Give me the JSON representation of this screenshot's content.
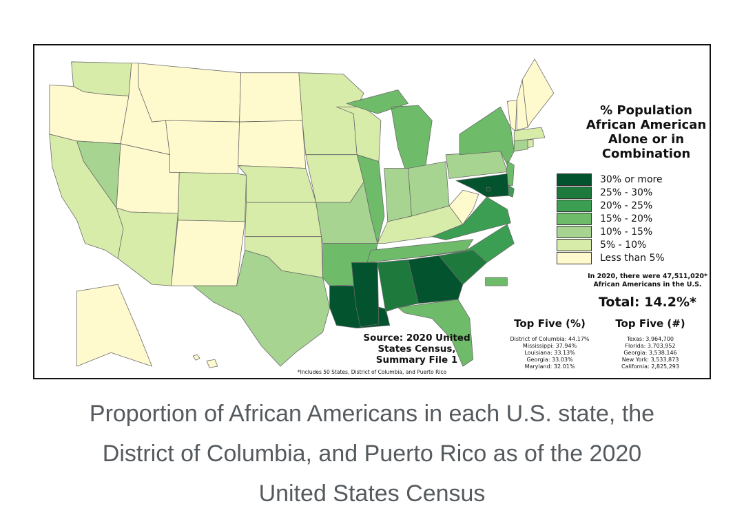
{
  "legend": {
    "title_lines": [
      "% Population",
      "African American",
      "Alone or in",
      "Combination"
    ],
    "classes": [
      {
        "label": "30% or more",
        "color": "#02532e"
      },
      {
        "label": "25% - 30%",
        "color": "#1d7a3c"
      },
      {
        "label": "20% - 25%",
        "color": "#3c9e52"
      },
      {
        "label": "15% - 20%",
        "color": "#6ebb6a"
      },
      {
        "label": "10% - 15%",
        "color": "#a7d491"
      },
      {
        "label": "5% - 10%",
        "color": "#d8ecaa"
      },
      {
        "label": "Less than 5%",
        "color": "#fffacd"
      }
    ]
  },
  "note_lines": [
    "In 2020, there were 47,511,020*",
    "African Americans in the U.S."
  ],
  "total": "Total: 14.2%*",
  "top_percent": {
    "heading": "Top Five (%)",
    "items": [
      "District of Columbia: 44.17%",
      "Mississippi: 37.94%",
      "Louisiana: 33.13%",
      "Georgia: 33.03%",
      "Maryland: 32.01%"
    ]
  },
  "top_count": {
    "heading": "Top Five (#)",
    "items": [
      "Texas: 3,964,700",
      "Florida: 3,703,952",
      "Georgia: 3,538,146",
      "New York: 3,533,873",
      "California: 2,825,293"
    ]
  },
  "source_lines": [
    "Source: 2020 United",
    "States Census,",
    "Summary File 1"
  ],
  "footnote": "*Includes 50 States, District of Columbia, and Puerto Rico",
  "caption_lines": [
    "Proportion of African Americans in each U.S. state, the",
    "District of Columbia, and Puerto Rico as of the 2020",
    "United States Census"
  ],
  "state_classes": {
    "WA": "5% - 10%",
    "OR": "Less than 5%",
    "CA": "5% - 10%",
    "NV": "10% - 15%",
    "ID": "Less than 5%",
    "MT": "Less than 5%",
    "WY": "Less than 5%",
    "UT": "Less than 5%",
    "AZ": "5% - 10%",
    "CO": "5% - 10%",
    "NM": "Less than 5%",
    "ND": "Less than 5%",
    "SD": "Less than 5%",
    "NE": "5% - 10%",
    "KS": "5% - 10%",
    "OK": "5% - 10%",
    "TX": "10% - 15%",
    "MN": "5% - 10%",
    "IA": "5% - 10%",
    "MO": "10% - 15%",
    "AR": "15% - 20%",
    "LA": "30% or more",
    "WI": "5% - 10%",
    "IL": "15% - 20%",
    "MI": "15% - 20%",
    "IN": "10% - 15%",
    "OH": "10% - 15%",
    "KY": "5% - 10%",
    "TN": "15% - 20%",
    "MS": "30% or more",
    "AL": "25% - 30%",
    "GA": "30% or more",
    "FL": "15% - 20%",
    "SC": "25% - 30%",
    "NC": "20% - 25%",
    "VA": "20% - 25%",
    "WV": "Less than 5%",
    "PA": "10% - 15%",
    "NY": "15% - 20%",
    "NJ": "15% - 20%",
    "DE": "20% - 25%",
    "MD": "30% or more",
    "DC": "30% or more",
    "CT": "10% - 15%",
    "RI": "5% - 10%",
    "MA": "5% - 10%",
    "VT": "Less than 5%",
    "NH": "Less than 5%",
    "ME": "Less than 5%",
    "AK": "Less than 5%",
    "HI": "Less than 5%",
    "PR": "15% - 20%"
  }
}
